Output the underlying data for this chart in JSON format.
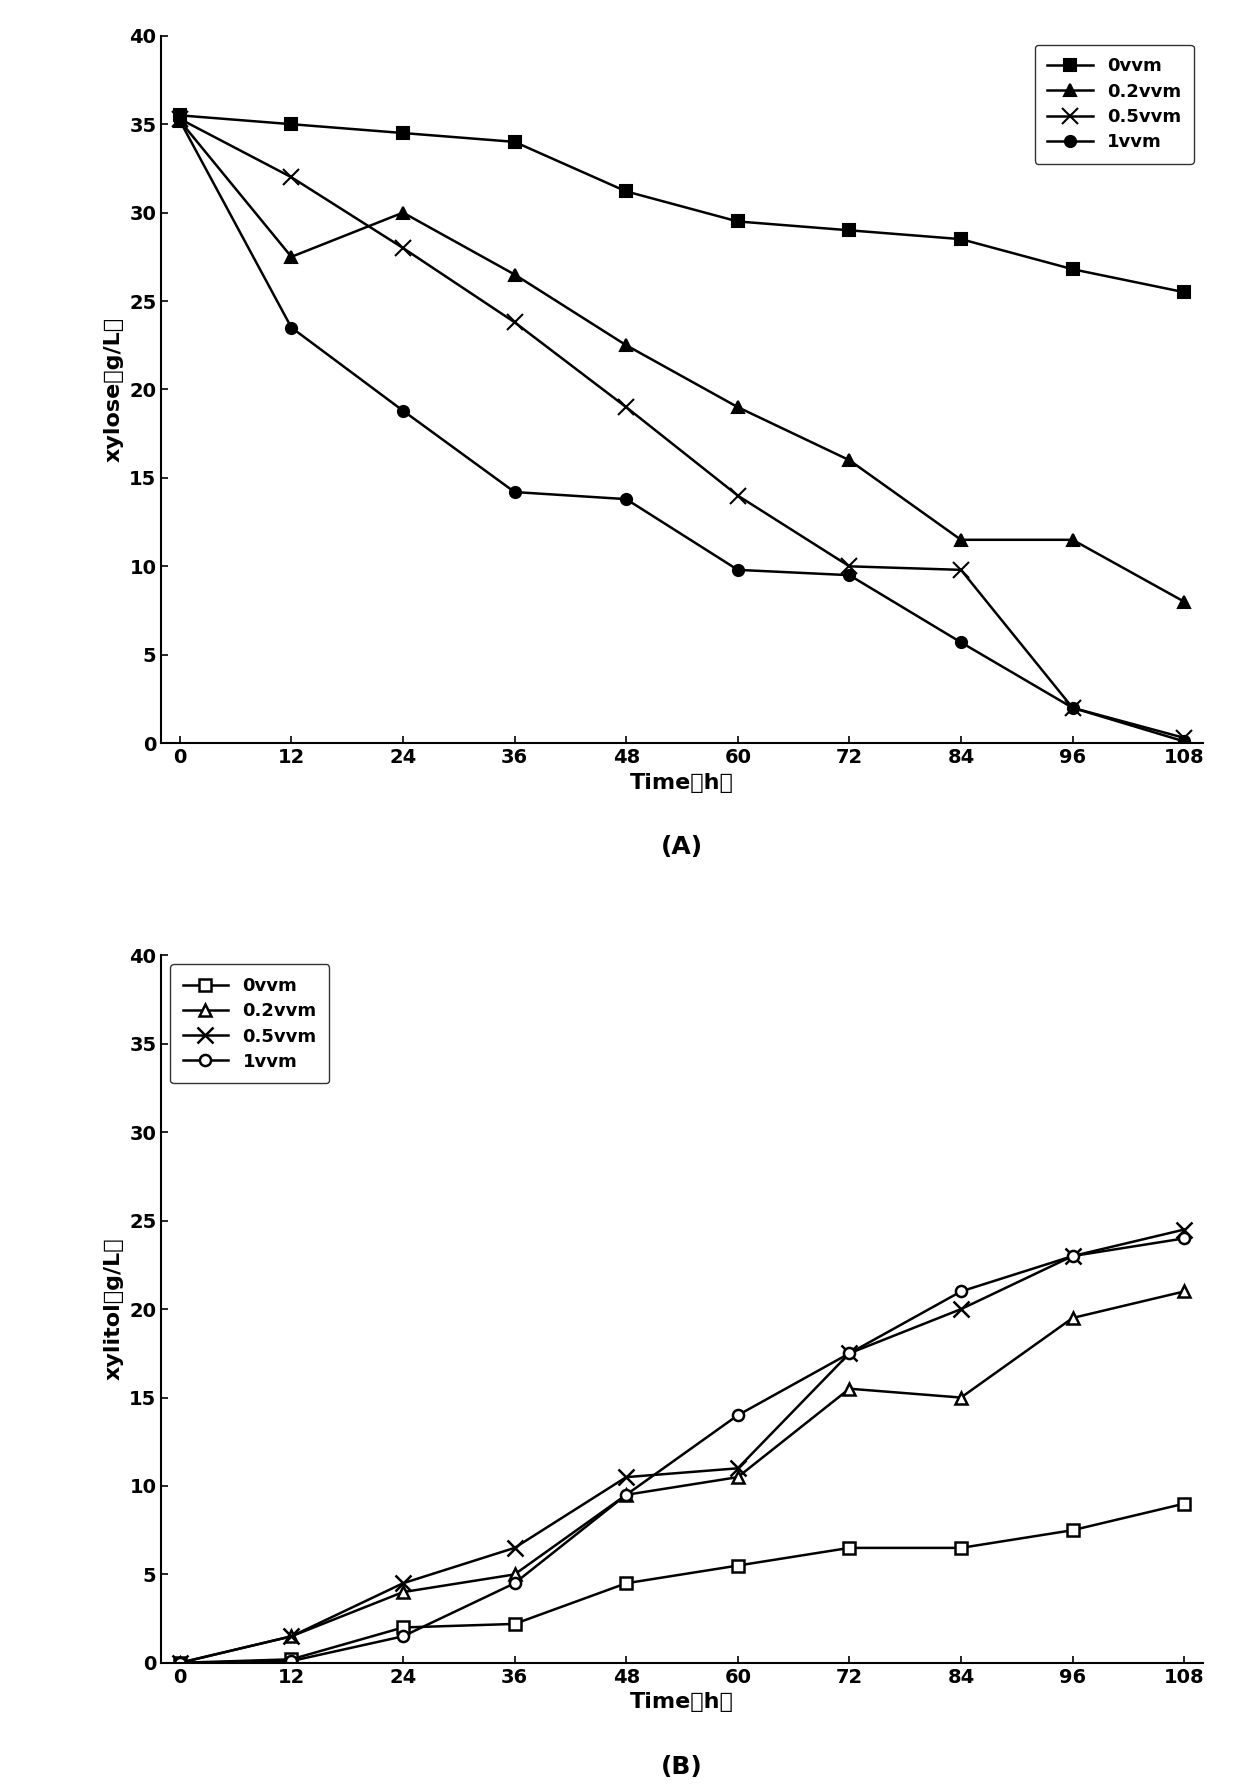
{
  "time": [
    0,
    12,
    24,
    36,
    48,
    60,
    72,
    84,
    96,
    108
  ],
  "xylose_0vvm": [
    35.5,
    35.0,
    34.5,
    34.0,
    31.2,
    29.5,
    29.0,
    28.5,
    26.8,
    25.5
  ],
  "xylose_02vvm": [
    35.2,
    27.5,
    30.0,
    26.5,
    22.5,
    19.0,
    16.0,
    11.5,
    11.5,
    8.0
  ],
  "xylose_05vvm": [
    35.3,
    32.0,
    28.0,
    23.8,
    19.0,
    14.0,
    10.0,
    9.8,
    2.0,
    0.3
  ],
  "xylose_1vvm": [
    35.2,
    23.5,
    18.8,
    14.2,
    13.8,
    9.8,
    9.5,
    5.7,
    2.0,
    0.1
  ],
  "xylitol_0vvm": [
    0,
    0.2,
    2.0,
    2.2,
    4.5,
    5.5,
    6.5,
    6.5,
    7.5,
    9.0
  ],
  "xylitol_02vvm": [
    0,
    1.5,
    4.0,
    5.0,
    9.5,
    10.5,
    15.5,
    15.0,
    19.5,
    21.0
  ],
  "xylitol_05vvm": [
    0,
    1.5,
    4.5,
    6.5,
    10.5,
    11.0,
    17.5,
    20.0,
    23.0,
    24.5
  ],
  "xylitol_1vvm": [
    0,
    0.1,
    1.5,
    4.5,
    9.5,
    14.0,
    17.5,
    21.0,
    23.0,
    24.0
  ],
  "panel_A_label": "(A)",
  "panel_B_label": "(B)",
  "xlabel": "Time（h）",
  "ylabel_A": "xylose（g/L）",
  "ylabel_B": "xylitol（g/L）",
  "legend_labels": [
    "0vvm",
    "0.2vvm",
    "0.5vvm",
    "1vvm"
  ],
  "ylim": [
    0,
    40
  ],
  "xlim": [
    0,
    108
  ],
  "xticks": [
    0,
    12,
    24,
    36,
    48,
    60,
    72,
    84,
    96,
    108
  ],
  "yticks": [
    0,
    5,
    10,
    15,
    20,
    25,
    30,
    35,
    40
  ],
  "linewidth": 1.8,
  "markersize": 8,
  "fontsize_label": 16,
  "fontsize_tick": 14,
  "fontsize_legend": 13,
  "fontsize_panel": 18
}
